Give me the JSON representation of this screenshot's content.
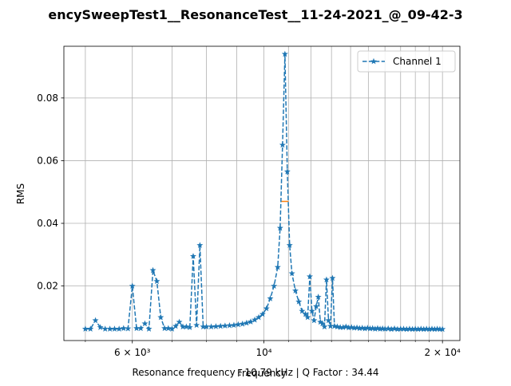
{
  "chart_data": {
    "type": "line",
    "title": "encySweepTest1__ResonanceTest__11-24-2021_@_09-42-3",
    "xlabel": "Frequency",
    "ylabel": "RMS",
    "x_scale": "log",
    "xlim": [
      4600,
      21400
    ],
    "ylim": [
      0.0026,
      0.0965
    ],
    "xticks": [
      {
        "value": 6000,
        "label": "6 × 10³"
      },
      {
        "value": 10000,
        "label": "10⁴"
      },
      {
        "value": 20000,
        "label": "2 × 10⁴"
      }
    ],
    "yticks": [
      {
        "value": 0.02,
        "label": "0.02"
      },
      {
        "value": 0.04,
        "label": "0.04"
      },
      {
        "value": 0.06,
        "label": "0.06"
      },
      {
        "value": 0.08,
        "label": "0.08"
      }
    ],
    "grid": true,
    "legend": {
      "position": "top-right"
    },
    "series": [
      {
        "name": "Channel 1",
        "color": "#1f77b4",
        "linestyle": "dashed",
        "marker": "star",
        "points": [
          [
            5000,
            0.0063
          ],
          [
            5100,
            0.0063
          ],
          [
            5200,
            0.009
          ],
          [
            5300,
            0.0068
          ],
          [
            5400,
            0.0063
          ],
          [
            5500,
            0.0063
          ],
          [
            5600,
            0.0063
          ],
          [
            5700,
            0.0063
          ],
          [
            5800,
            0.0065
          ],
          [
            5900,
            0.0064
          ],
          [
            6000,
            0.02
          ],
          [
            6100,
            0.0065
          ],
          [
            6200,
            0.0065
          ],
          [
            6300,
            0.008
          ],
          [
            6400,
            0.0063
          ],
          [
            6500,
            0.025
          ],
          [
            6600,
            0.0215
          ],
          [
            6700,
            0.01
          ],
          [
            6800,
            0.0065
          ],
          [
            6900,
            0.0065
          ],
          [
            7000,
            0.0063
          ],
          [
            7100,
            0.0072
          ],
          [
            7200,
            0.0085
          ],
          [
            7300,
            0.007
          ],
          [
            7400,
            0.007
          ],
          [
            7500,
            0.0068
          ],
          [
            7600,
            0.0295
          ],
          [
            7700,
            0.0075
          ],
          [
            7800,
            0.033
          ],
          [
            7900,
            0.007
          ],
          [
            8000,
            0.007
          ],
          [
            8150,
            0.007
          ],
          [
            8300,
            0.0071
          ],
          [
            8450,
            0.0072
          ],
          [
            8600,
            0.0073
          ],
          [
            8750,
            0.0074
          ],
          [
            8900,
            0.0075
          ],
          [
            9050,
            0.0077
          ],
          [
            9200,
            0.0079
          ],
          [
            9350,
            0.0082
          ],
          [
            9500,
            0.0086
          ],
          [
            9650,
            0.0092
          ],
          [
            9800,
            0.01
          ],
          [
            9950,
            0.011
          ],
          [
            10100,
            0.0128
          ],
          [
            10250,
            0.016
          ],
          [
            10400,
            0.02
          ],
          [
            10550,
            0.026
          ],
          [
            10650,
            0.0385
          ],
          [
            10750,
            0.065
          ],
          [
            10850,
            0.094
          ],
          [
            10950,
            0.0565
          ],
          [
            11050,
            0.033
          ],
          [
            11150,
            0.024
          ],
          [
            11300,
            0.0185
          ],
          [
            11450,
            0.015
          ],
          [
            11600,
            0.012
          ],
          [
            11750,
            0.011
          ],
          [
            11850,
            0.01
          ],
          [
            11950,
            0.023
          ],
          [
            12050,
            0.012
          ],
          [
            12150,
            0.009
          ],
          [
            12250,
            0.0135
          ],
          [
            12350,
            0.0165
          ],
          [
            12450,
            0.0085
          ],
          [
            12550,
            0.008
          ],
          [
            12650,
            0.007
          ],
          [
            12750,
            0.022
          ],
          [
            12850,
            0.009
          ],
          [
            12950,
            0.0072
          ],
          [
            13050,
            0.0225
          ],
          [
            13150,
            0.0072
          ],
          [
            13300,
            0.007
          ],
          [
            13450,
            0.0068
          ],
          [
            13600,
            0.0068
          ],
          [
            13750,
            0.007
          ],
          [
            13900,
            0.0067
          ],
          [
            14050,
            0.0068
          ],
          [
            14200,
            0.0066
          ],
          [
            14350,
            0.0067
          ],
          [
            14500,
            0.0065
          ],
          [
            14650,
            0.0066
          ],
          [
            14800,
            0.0064
          ],
          [
            14950,
            0.0066
          ],
          [
            15100,
            0.0064
          ],
          [
            15250,
            0.0065
          ],
          [
            15400,
            0.0063
          ],
          [
            15550,
            0.0065
          ],
          [
            15700,
            0.0063
          ],
          [
            15850,
            0.0064
          ],
          [
            16000,
            0.0063
          ],
          [
            16200,
            0.0064
          ],
          [
            16400,
            0.0062
          ],
          [
            16600,
            0.0064
          ],
          [
            16800,
            0.0062
          ],
          [
            17000,
            0.0063
          ],
          [
            17200,
            0.0063
          ],
          [
            17400,
            0.0062
          ],
          [
            17600,
            0.0063
          ],
          [
            17800,
            0.0062
          ],
          [
            18000,
            0.0063
          ],
          [
            18200,
            0.0062
          ],
          [
            18400,
            0.0063
          ],
          [
            18600,
            0.0062
          ],
          [
            18800,
            0.0063
          ],
          [
            19000,
            0.0062
          ],
          [
            19200,
            0.0063
          ],
          [
            19400,
            0.0062
          ],
          [
            19600,
            0.0063
          ],
          [
            19800,
            0.0062
          ],
          [
            20000,
            0.0062
          ]
        ]
      }
    ],
    "annotations": {
      "half_power_line": {
        "x_start": 10700,
        "x_end": 11000,
        "y": 0.047,
        "color": "#ff7f0e"
      },
      "caption": "Resonance frequency : 10.79 kHz | Q Factor : 34.44"
    }
  }
}
